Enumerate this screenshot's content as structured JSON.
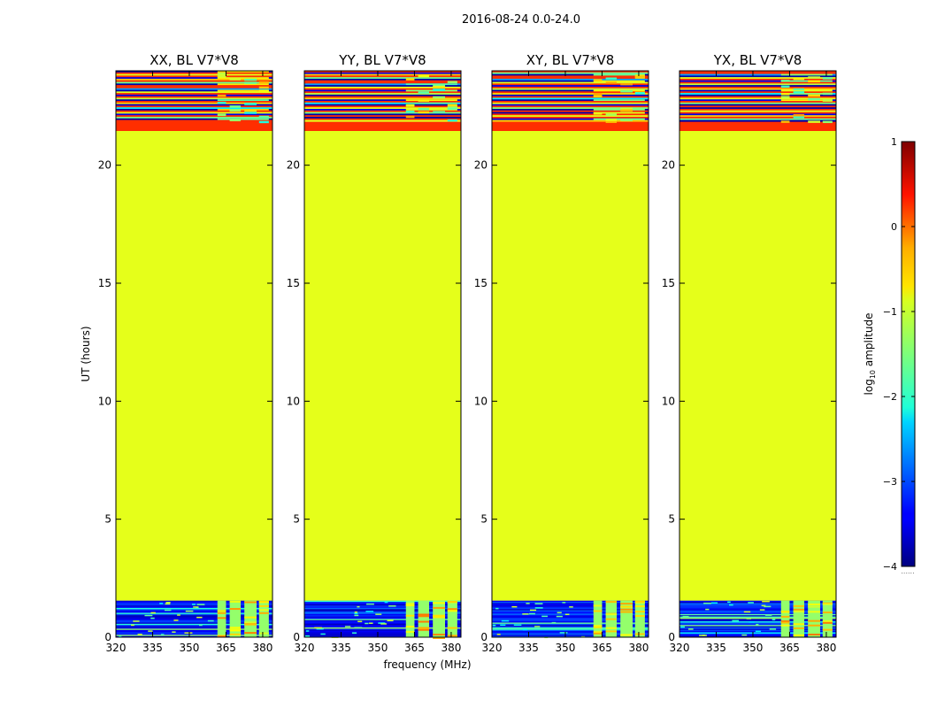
{
  "figure": {
    "suptitle": "2016-08-24 0.0-24.0",
    "xlabel": "frequency (MHz)",
    "ylabel": "UT (hours)"
  },
  "colorbar": {
    "label_prefix": "log",
    "label_sub": "10",
    "label_suffix": " amplitude",
    "min": -4,
    "max": 1,
    "ticks": [
      -4,
      -3,
      -2,
      -1,
      0,
      1
    ],
    "tick_labels": [
      "−4",
      "−3",
      "−2",
      "−1",
      "0",
      "1"
    ],
    "footer": "......",
    "colormap": "jet"
  },
  "chart_data": {
    "type": "heatmap",
    "x": {
      "min": 320,
      "max": 384,
      "ticks": [
        320,
        335,
        350,
        365,
        380
      ]
    },
    "y": {
      "min": 0,
      "max": 24,
      "ticks": [
        0,
        5,
        10,
        15,
        20
      ]
    },
    "rfi_bands_mhz": [
      [
        361.5,
        365.0
      ],
      [
        366.5,
        371.0
      ],
      [
        372.5,
        377.5
      ],
      [
        378.5,
        382.5
      ]
    ],
    "panels": [
      {
        "title": "XX, BL V7*V8",
        "tick_labels": {
          "x": [
            "320",
            "335",
            "350",
            "365",
            "380"
          ],
          "y": [
            "0",
            "5",
            "10",
            "15",
            "20"
          ]
        }
      },
      {
        "title": "YY, BL V7*V8",
        "tick_labels": {
          "x": [
            "320",
            "335",
            "350",
            "365",
            "380"
          ],
          "y": [
            "0",
            "5",
            "10",
            "15",
            "20"
          ]
        }
      },
      {
        "title": "XY, BL V7*V8",
        "tick_labels": {
          "x": [
            "320",
            "335",
            "350",
            "365",
            "380"
          ],
          "y": [
            "0",
            "5",
            "10",
            "15",
            "20"
          ]
        }
      },
      {
        "title": "YX, BL V7*V8",
        "tick_labels": {
          "x": [
            "320",
            "335",
            "350",
            "365",
            "380"
          ],
          "y": [
            "0",
            "5",
            "10",
            "15",
            "20"
          ]
        }
      }
    ],
    "segments": [
      {
        "name": "low-amplitude-band",
        "ut_start": 0.0,
        "ut_end": 1.55,
        "log10_amplitude": -3.3,
        "rfi_log10_amplitude": -1.4
      },
      {
        "name": "constant-fill",
        "ut_start": 1.55,
        "ut_end": 21.45,
        "log10_amplitude": -1.0
      },
      {
        "name": "high-fill",
        "ut_start": 21.45,
        "ut_end": 21.85,
        "log10_amplitude": 0.15
      },
      {
        "name": "mixed-band",
        "ut_start": 21.85,
        "ut_end": 24.0,
        "log10_amplitude": 0.15,
        "rfi_log10_amplitude": -1.2
      }
    ]
  }
}
